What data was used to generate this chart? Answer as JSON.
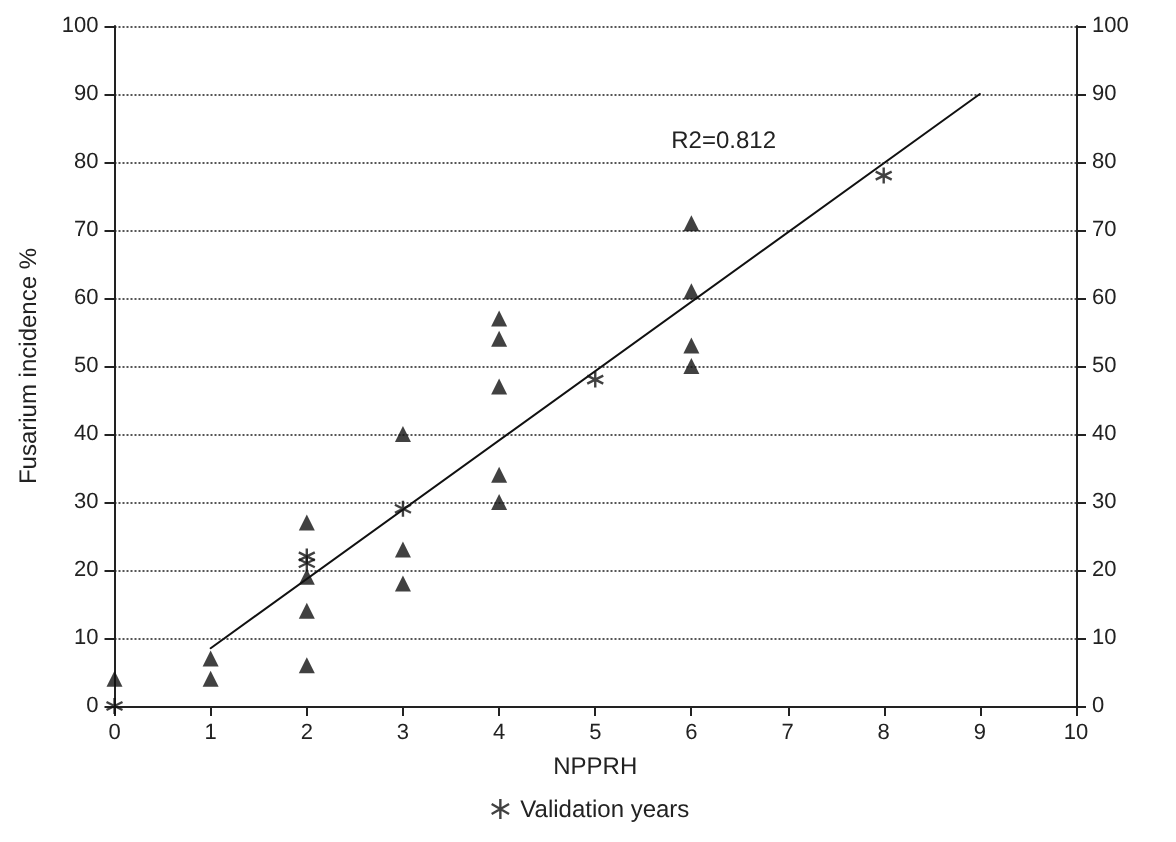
{
  "chart_data": {
    "type": "scatter",
    "xlabel": "NPPRH",
    "ylabel": "Fusarium incidence %",
    "xlim": [
      0,
      10
    ],
    "xticks": [
      0,
      1,
      2,
      3,
      4,
      5,
      6,
      7,
      8,
      9,
      10
    ],
    "ylim": [
      0,
      100
    ],
    "yticks": [
      0,
      10,
      20,
      30,
      40,
      50,
      60,
      70,
      80,
      90,
      100
    ],
    "y2lim": [
      0,
      100
    ],
    "y2ticks": [
      0,
      10,
      20,
      30,
      40,
      50,
      60,
      70,
      80,
      90,
      100
    ],
    "grid": "y",
    "legend": "bottom",
    "series": [
      {
        "color": "#111111",
        "marker": "triangle",
        "x": [
          0,
          1,
          1,
          2,
          2,
          2,
          2,
          3,
          3,
          3,
          4,
          4,
          4,
          4,
          4,
          6,
          6,
          6,
          6
        ],
        "values": [
          4,
          7,
          4,
          27,
          19,
          14,
          6,
          40,
          23,
          18,
          57,
          54,
          47,
          34,
          30,
          71,
          61,
          53,
          50
        ]
      },
      {
        "name": "Validation years",
        "color": "#111111",
        "marker": "cross",
        "x": [
          0,
          2,
          2,
          3,
          5,
          8
        ],
        "values": [
          0,
          22,
          21,
          29,
          48,
          78
        ]
      },
      {
        "type": "line",
        "color": "#111111",
        "marker": "none",
        "x": [
          1,
          9
        ],
        "values": [
          8.5,
          90
        ]
      }
    ],
    "annotations": [
      "R2=0.812"
    ]
  }
}
